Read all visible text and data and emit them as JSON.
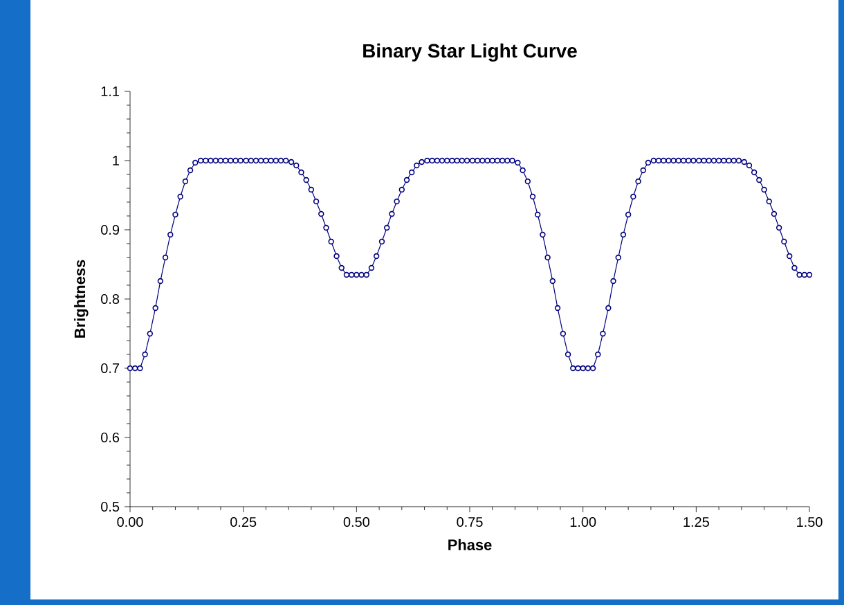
{
  "chart_data": {
    "type": "line",
    "title": "Binary Star Light Curve",
    "xlabel": "Phase",
    "ylabel": "Brightness",
    "x": [
      0,
      0.011,
      0.022,
      0.033,
      0.044,
      0.056,
      0.067,
      0.078,
      0.089,
      0.1,
      0.111,
      0.122,
      0.133,
      0.144,
      0.156,
      0.167,
      0.178,
      0.189,
      0.2,
      0.211,
      0.222,
      0.233,
      0.244,
      0.256,
      0.267,
      0.278,
      0.289,
      0.3,
      0.311,
      0.322,
      0.333,
      0.344,
      0.356,
      0.367,
      0.378,
      0.389,
      0.4,
      0.411,
      0.422,
      0.433,
      0.444,
      0.456,
      0.467,
      0.478,
      0.489,
      0.5,
      0.511,
      0.522,
      0.533,
      0.544,
      0.556,
      0.567,
      0.578,
      0.589,
      0.6,
      0.611,
      0.622,
      0.633,
      0.644,
      0.656,
      0.667,
      0.678,
      0.689,
      0.7,
      0.711,
      0.722,
      0.733,
      0.744,
      0.756,
      0.767,
      0.778,
      0.789,
      0.8,
      0.811,
      0.822,
      0.833,
      0.844,
      0.856,
      0.867,
      0.878,
      0.889,
      0.9,
      0.911,
      0.922,
      0.933,
      0.944,
      0.956,
      0.967,
      0.978,
      0.989,
      1.0,
      1.011,
      1.022,
      1.033,
      1.044,
      1.056,
      1.067,
      1.078,
      1.089,
      1.1,
      1.111,
      1.122,
      1.133,
      1.144,
      1.156,
      1.167,
      1.178,
      1.189,
      1.2,
      1.211,
      1.222,
      1.233,
      1.244,
      1.256,
      1.267,
      1.278,
      1.289,
      1.3,
      1.311,
      1.322,
      1.333,
      1.344,
      1.356,
      1.367,
      1.378,
      1.389,
      1.4,
      1.411,
      1.422,
      1.433,
      1.444,
      1.456,
      1.467,
      1.478,
      1.489,
      1.5
    ],
    "series": [
      {
        "color": "#000080",
        "values": [
          0.7,
          0.7,
          0.7,
          0.72,
          0.75,
          0.787,
          0.826,
          0.86,
          0.893,
          0.922,
          0.948,
          0.97,
          0.986,
          0.997,
          1.0,
          1.0,
          1.0,
          1.0,
          1.0,
          1.0,
          1.0,
          1.0,
          1.0,
          1.0,
          1.0,
          1.0,
          1.0,
          1.0,
          1.0,
          1.0,
          1.0,
          1.0,
          0.998,
          0.993,
          0.983,
          0.972,
          0.958,
          0.941,
          0.923,
          0.903,
          0.883,
          0.862,
          0.845,
          0.835,
          0.835,
          0.835,
          0.835,
          0.835,
          0.845,
          0.862,
          0.883,
          0.903,
          0.923,
          0.941,
          0.958,
          0.972,
          0.983,
          0.993,
          0.998,
          1.0,
          1.0,
          1.0,
          1.0,
          1.0,
          1.0,
          1.0,
          1.0,
          1.0,
          1.0,
          1.0,
          1.0,
          1.0,
          1.0,
          1.0,
          1.0,
          1.0,
          1.0,
          0.997,
          0.986,
          0.97,
          0.948,
          0.922,
          0.893,
          0.86,
          0.826,
          0.787,
          0.75,
          0.72,
          0.7,
          0.7,
          0.7,
          0.7,
          0.7,
          0.72,
          0.75,
          0.787,
          0.826,
          0.86,
          0.893,
          0.922,
          0.948,
          0.97,
          0.986,
          0.997,
          1.0,
          1.0,
          1.0,
          1.0,
          1.0,
          1.0,
          1.0,
          1.0,
          1.0,
          1.0,
          1.0,
          1.0,
          1.0,
          1.0,
          1.0,
          1.0,
          1.0,
          1.0,
          0.998,
          0.993,
          0.983,
          0.972,
          0.958,
          0.941,
          0.923,
          0.903,
          0.883,
          0.862,
          0.845,
          0.835,
          0.835,
          0.835
        ]
      }
    ],
    "xlim": [
      0,
      1.5
    ],
    "ylim": [
      0.5,
      1.1
    ],
    "xticks": [
      {
        "value": 0,
        "label": "0.00"
      },
      {
        "value": 0.25,
        "label": "0.25"
      },
      {
        "value": 0.5,
        "label": "0.50"
      },
      {
        "value": 0.75,
        "label": "0.75"
      },
      {
        "value": 1,
        "label": "1.00"
      },
      {
        "value": 1.25,
        "label": "1.25"
      },
      {
        "value": 1.5,
        "label": "1.50"
      }
    ],
    "yticks": [
      0.5,
      0.6,
      0.7,
      0.8,
      0.9,
      1,
      1.1
    ],
    "marker": "circle",
    "line_style": "solid"
  }
}
